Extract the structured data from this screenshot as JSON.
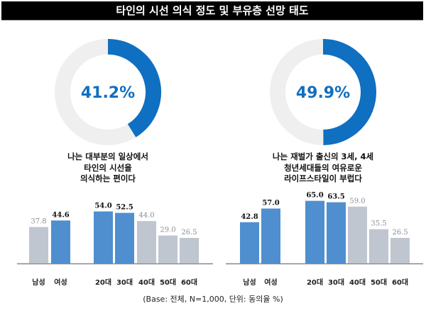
{
  "title": "타인의 시선 의식 정도 및 부유층 선망 태도",
  "footnote": "(Base: 전체, N=1,000, 단위: 동의율 %)",
  "colors": {
    "highlight": "#4f8fcf",
    "muted": "#bfc6d0",
    "donut": "#0f6fc1",
    "track": "#efefef",
    "axis": "#888888"
  },
  "chart_data": [
    {
      "type": "pie",
      "subtype": "donut",
      "value": 41.2,
      "label": "41.2%",
      "caption": [
        "나는 대부분의 일상에서",
        "타인의 시선을",
        "의식하는 편이다"
      ],
      "bars": {
        "type": "bar",
        "categories": [
          "남성",
          "여성",
          "20대",
          "30대",
          "40대",
          "50대",
          "60대"
        ],
        "values": [
          37.8,
          44.6,
          54.0,
          52.5,
          44.0,
          29.0,
          26.5
        ],
        "labels": [
          "37.8",
          "44.6",
          "54.0",
          "52.5",
          "44.0",
          "29.0",
          "26.5"
        ],
        "highlight": [
          false,
          true,
          true,
          true,
          false,
          false,
          false
        ]
      }
    },
    {
      "type": "pie",
      "subtype": "donut",
      "value": 49.9,
      "label": "49.9%",
      "caption": [
        "나는 재벌가 출신의 3세, 4세",
        "청년세대들의 여유로운",
        "라이프스타일이 부럽다"
      ],
      "bars": {
        "type": "bar",
        "categories": [
          "남성",
          "여성",
          "20대",
          "30대",
          "40대",
          "50대",
          "60대"
        ],
        "values": [
          42.8,
          57.0,
          65.0,
          63.5,
          59.0,
          35.5,
          26.5
        ],
        "labels": [
          "42.8",
          "57.0",
          "65.0",
          "63.5",
          "59.0",
          "35.5",
          "26.5"
        ],
        "highlight": [
          true,
          true,
          true,
          true,
          false,
          false,
          false
        ]
      }
    }
  ]
}
